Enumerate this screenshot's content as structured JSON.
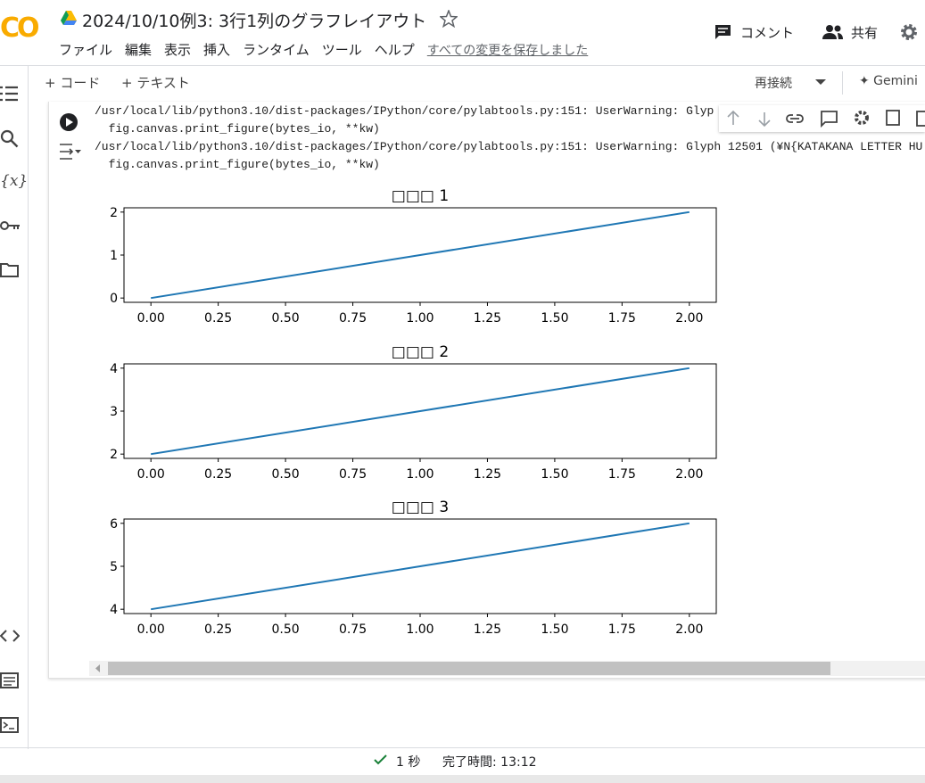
{
  "header": {
    "logo": "CO",
    "title": "2024/10/10例3: 3行1列のグラフレイアウト",
    "menu": [
      "ファイル",
      "編集",
      "表示",
      "挿入",
      "ランタイム",
      "ツール",
      "ヘルプ"
    ],
    "save_status": "すべての変更を保存しました",
    "comment": "コメント",
    "share": "共有"
  },
  "toolbar": {
    "add_code": "+ コード",
    "add_text": "+ テキスト",
    "reconnect": "再接続",
    "gemini": "✦ Gemini"
  },
  "sidebar": {
    "variables": "{x}"
  },
  "output": {
    "lines": [
      "/usr/local/lib/python3.10/dist-packages/IPython/core/pylabtools.py:151: UserWarning: Glyp",
      "  fig.canvas.print_figure(bytes_io, **kw)",
      "/usr/local/lib/python3.10/dist-packages/IPython/core/pylabtools.py:151: UserWarning: Glyph 12501 (¥N{KATAKANA LETTER HU",
      "  fig.canvas.print_figure(bytes_io, **kw)"
    ]
  },
  "chart_data": [
    {
      "type": "line",
      "title": "□□□ 1",
      "x": [
        0,
        1,
        2
      ],
      "series": [
        {
          "color": "#1f77b4",
          "values": [
            0,
            1,
            2
          ]
        }
      ],
      "xlim": [
        -0.1,
        2.1
      ],
      "ylim": [
        -0.1,
        2.1
      ],
      "xticks": [
        {
          "value": 0,
          "label": "0.00"
        },
        {
          "value": 0.25,
          "label": "0.25"
        },
        {
          "value": 0.5,
          "label": "0.50"
        },
        {
          "value": 0.75,
          "label": "0.75"
        },
        {
          "value": 1,
          "label": "1.00"
        },
        {
          "value": 1.25,
          "label": "1.25"
        },
        {
          "value": 1.5,
          "label": "1.50"
        },
        {
          "value": 1.75,
          "label": "1.75"
        },
        {
          "value": 2,
          "label": "2.00"
        }
      ],
      "yticks": [
        0,
        1,
        2
      ]
    },
    {
      "type": "line",
      "title": "□□□ 2",
      "x": [
        0,
        1,
        2
      ],
      "series": [
        {
          "color": "#1f77b4",
          "values": [
            2,
            3,
            4
          ]
        }
      ],
      "xlim": [
        -0.1,
        2.1
      ],
      "ylim": [
        1.9,
        4.1
      ],
      "xticks": [
        {
          "value": 0,
          "label": "0.00"
        },
        {
          "value": 0.25,
          "label": "0.25"
        },
        {
          "value": 0.5,
          "label": "0.50"
        },
        {
          "value": 0.75,
          "label": "0.75"
        },
        {
          "value": 1,
          "label": "1.00"
        },
        {
          "value": 1.25,
          "label": "1.25"
        },
        {
          "value": 1.5,
          "label": "1.50"
        },
        {
          "value": 1.75,
          "label": "1.75"
        },
        {
          "value": 2,
          "label": "2.00"
        }
      ],
      "yticks": [
        2,
        3,
        4
      ]
    },
    {
      "type": "line",
      "title": "□□□ 3",
      "x": [
        0,
        1,
        2
      ],
      "series": [
        {
          "color": "#1f77b4",
          "values": [
            4,
            5,
            6
          ]
        }
      ],
      "xlim": [
        -0.1,
        2.1
      ],
      "ylim": [
        3.9,
        6.1
      ],
      "xticks": [
        {
          "value": 0,
          "label": "0.00"
        },
        {
          "value": 0.25,
          "label": "0.25"
        },
        {
          "value": 0.5,
          "label": "0.50"
        },
        {
          "value": 0.75,
          "label": "0.75"
        },
        {
          "value": 1,
          "label": "1.00"
        },
        {
          "value": 1.25,
          "label": "1.25"
        },
        {
          "value": 1.5,
          "label": "1.50"
        },
        {
          "value": 1.75,
          "label": "1.75"
        },
        {
          "value": 2,
          "label": "2.00"
        }
      ],
      "yticks": [
        4,
        5,
        6
      ]
    }
  ],
  "status": {
    "duration": "1 秒",
    "completed": "完了時間: 13:12"
  }
}
